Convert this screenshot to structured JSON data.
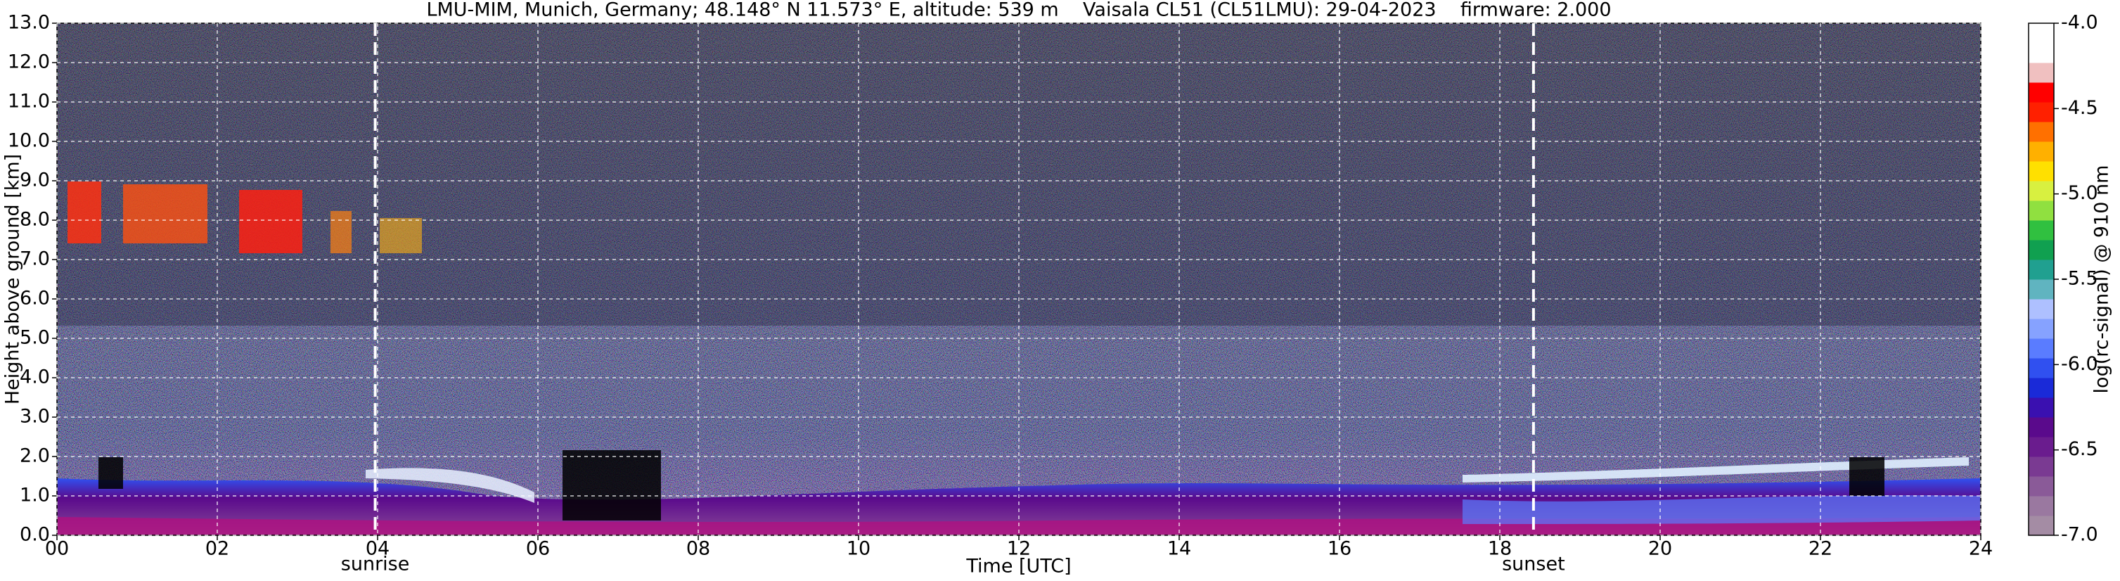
{
  "chart_data": {
    "type": "heatmap",
    "title": "LMU-MIM, Munich, Germany; 48.148° N 11.573° E, altitude: 539 m    Vaisala CL51 (CL51LMU): 29-04-2023    firmware: 2.000",
    "x_label": "Time [UTC]",
    "y_label": "Height above ground [km]",
    "xlim": [
      0,
      24
    ],
    "xticks": [
      {
        "value": 0,
        "label": "00"
      },
      {
        "value": 2,
        "label": "02"
      },
      {
        "value": 4,
        "label": "04"
      },
      {
        "value": 6,
        "label": "06"
      },
      {
        "value": 8,
        "label": "08"
      },
      10,
      12,
      14,
      16,
      18,
      20,
      22,
      24
    ],
    "ylim": [
      0,
      13
    ],
    "yticks": [
      {
        "value": 0,
        "label": "0.0"
      },
      {
        "value": 1,
        "label": "1.0"
      },
      {
        "value": 2,
        "label": "2.0"
      },
      {
        "value": 3,
        "label": "3.0"
      },
      {
        "value": 4,
        "label": "4.0"
      },
      {
        "value": 5,
        "label": "5.0"
      },
      {
        "value": 6,
        "label": "6.0"
      },
      {
        "value": 7,
        "label": "7.0"
      },
      {
        "value": 8,
        "label": "8.0"
      },
      {
        "value": 9,
        "label": "9.0"
      },
      {
        "value": 10,
        "label": "10.0"
      },
      {
        "value": 11,
        "label": "11.0"
      },
      {
        "value": 12,
        "label": "12.0"
      },
      {
        "value": 13,
        "label": "13.0"
      }
    ],
    "grid": true,
    "annotations": [
      {
        "text": "sunrise",
        "x": 3.97
      },
      {
        "text": "sunset",
        "x": 18.42
      }
    ],
    "colorbar": {
      "label": "log(rc-signal) @ 910 nm",
      "lim": [
        -7,
        -4
      ],
      "ticks": [
        {
          "value": -4.0,
          "label": "-4.0"
        },
        {
          "value": -4.5,
          "label": "-4.5"
        },
        {
          "value": -5.0,
          "label": "-5.0"
        },
        {
          "value": -5.5,
          "label": "-5.5"
        },
        {
          "value": -6.0,
          "label": "-6.0"
        },
        {
          "value": -6.5,
          "label": "-6.5"
        },
        {
          "value": -7.0,
          "label": "-7.0"
        }
      ],
      "colors": [
        "#a48ca4",
        "#9a78a0",
        "#8a5a98",
        "#7a3a92",
        "#6a1c8e",
        "#5a0a8c",
        "#3a10b0",
        "#1a2ad8",
        "#3050f0",
        "#5a7cff",
        "#86a2ff",
        "#aec0ff",
        "#60b4c0",
        "#20a090",
        "#10a050",
        "#30c040",
        "#90e040",
        "#d8f040",
        "#ffe000",
        "#ffb000",
        "#ff7000",
        "#ff2000",
        "#ff0000",
        "#f0c0c0",
        "#ffffff",
        "#ffffff"
      ]
    }
  }
}
